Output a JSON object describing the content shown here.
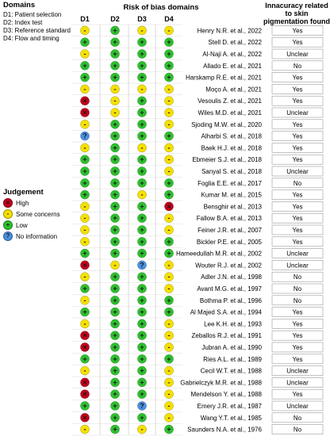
{
  "domains": {
    "title": "Domains",
    "items": [
      "D1: Patient selection",
      "D2: Index test",
      "D3: Reference standard",
      "D4: Flow and timing"
    ]
  },
  "judgement": {
    "title": "Judgement",
    "items": [
      {
        "key": "high",
        "symbol": "×",
        "label": "High"
      },
      {
        "key": "some",
        "symbol": "-",
        "label": "Some concerns"
      },
      {
        "key": "low",
        "symbol": "+",
        "label": "Low"
      },
      {
        "key": "noinfo",
        "symbol": "?",
        "label": "No information"
      }
    ]
  },
  "colors": {
    "high": "#c0001a",
    "some": "#f5e000",
    "low": "#2ec02e",
    "noinfo": "#4a90e2"
  },
  "chart_data": {
    "type": "table",
    "title": "Risk of bias domains",
    "columns": [
      "D1",
      "D2",
      "D3",
      "D4"
    ],
    "extra_column_title": "Innacuracy related to skin pigmentation found",
    "rows": [
      {
        "study": "Henry N.R. et al., 2022",
        "d": [
          "some",
          "low",
          "some",
          "some"
        ],
        "finding": "Yes"
      },
      {
        "study": "Stell D. et al., 2022",
        "d": [
          "low",
          "low",
          "low",
          "low"
        ],
        "finding": "Yes"
      },
      {
        "study": "Al-Naji A. et al., 2022",
        "d": [
          "some",
          "low",
          "low",
          "low"
        ],
        "finding": "Unclear"
      },
      {
        "study": "Allado E. et al., 2021",
        "d": [
          "low",
          "low",
          "low",
          "low"
        ],
        "finding": "No"
      },
      {
        "study": "Harskamp R.E. et al., 2021",
        "d": [
          "low",
          "low",
          "low",
          "low"
        ],
        "finding": "Yes"
      },
      {
        "study": "Moço A. et al., 2021",
        "d": [
          "some",
          "some",
          "some",
          "some"
        ],
        "finding": "Yes"
      },
      {
        "study": "Vesoulis Z. et al., 2021",
        "d": [
          "high",
          "some",
          "low",
          "some"
        ],
        "finding": "Yes"
      },
      {
        "study": "Wiles M.D. et al., 2021",
        "d": [
          "high",
          "some",
          "low",
          "some"
        ],
        "finding": "Unclear"
      },
      {
        "study": "Sjoding M.W. et al., 2020",
        "d": [
          "some",
          "low",
          "low",
          "some"
        ],
        "finding": "Yes"
      },
      {
        "study": "Alharbi S. et al., 2018",
        "d": [
          "noinfo",
          "low",
          "low",
          "low"
        ],
        "finding": "Yes"
      },
      {
        "study": "Baek H.J. et al., 2018",
        "d": [
          "some",
          "low",
          "some",
          "some"
        ],
        "finding": "Yes"
      },
      {
        "study": "Ebmeier S.J. et al., 2018",
        "d": [
          "low",
          "low",
          "low",
          "some"
        ],
        "finding": "Yes"
      },
      {
        "study": "Sanyal S. et al., 2018",
        "d": [
          "low",
          "low",
          "low",
          "some"
        ],
        "finding": "Unclear"
      },
      {
        "study": "Foglia E.E. et al., 2017",
        "d": [
          "low",
          "low",
          "low",
          "low"
        ],
        "finding": "No"
      },
      {
        "study": "Kumar M. et al., 2015",
        "d": [
          "low",
          "low",
          "some",
          "low"
        ],
        "finding": "Yes"
      },
      {
        "study": "Bensghir et al., 2013",
        "d": [
          "some",
          "low",
          "low",
          "high"
        ],
        "finding": "Yes"
      },
      {
        "study": "Fallow B.A. et al., 2013",
        "d": [
          "some",
          "low",
          "low",
          "some"
        ],
        "finding": "Yes"
      },
      {
        "study": "Feiner J.R. et al., 2007",
        "d": [
          "some",
          "low",
          "low",
          "some"
        ],
        "finding": "Yes"
      },
      {
        "study": "Bickler P.E. et al., 2005",
        "d": [
          "some",
          "low",
          "low",
          "low"
        ],
        "finding": "Yes"
      },
      {
        "study": "Hameedullah M.R. et al., 2002",
        "d": [
          "low",
          "low",
          "low",
          "low"
        ],
        "finding": "Unclear"
      },
      {
        "study": "Wouter R.J. et al., 2002",
        "d": [
          "high",
          "some",
          "noinfo",
          "some"
        ],
        "finding": "Unclear"
      },
      {
        "study": "Adler J.N. et al., 1998",
        "d": [
          "some",
          "low",
          "low",
          "some"
        ],
        "finding": "No"
      },
      {
        "study": "Avant M.G. et al., 1997",
        "d": [
          "low",
          "low",
          "low",
          "some"
        ],
        "finding": "No"
      },
      {
        "study": "Bothma P. et al., 1996",
        "d": [
          "some",
          "low",
          "low",
          "low"
        ],
        "finding": "No"
      },
      {
        "study": "Al Majed S.A. et al., 1994",
        "d": [
          "low",
          "low",
          "low",
          "low"
        ],
        "finding": "Yes"
      },
      {
        "study": "Lee K.H. et al., 1993",
        "d": [
          "some",
          "low",
          "low",
          "some"
        ],
        "finding": "Yes"
      },
      {
        "study": "Zeballos R.J. et al., 1991",
        "d": [
          "high",
          "low",
          "low",
          "some"
        ],
        "finding": "Yes"
      },
      {
        "study": "Jubran A. et al., 1990",
        "d": [
          "high",
          "low",
          "low",
          "some"
        ],
        "finding": "Yes"
      },
      {
        "study": "Ries A.L. et al., 1989",
        "d": [
          "low",
          "low",
          "low",
          "low"
        ],
        "finding": "Yes"
      },
      {
        "study": "Cecil W.T. et al., 1988",
        "d": [
          "some",
          "low",
          "low",
          "some"
        ],
        "finding": "Unclear"
      },
      {
        "study": "Gabrielczyk M.R. et al., 1988",
        "d": [
          "high",
          "low",
          "low",
          "some"
        ],
        "finding": "Unclear"
      },
      {
        "study": "Mendelson Y. et al., 1988",
        "d": [
          "high",
          "low",
          "low",
          "some"
        ],
        "finding": "Yes"
      },
      {
        "study": "Emery J.R. et al., 1987",
        "d": [
          "low",
          "low",
          "noinfo",
          "some"
        ],
        "finding": "Unclear"
      },
      {
        "study": "Wang Y.T. et al., 1985",
        "d": [
          "high",
          "low",
          "low",
          "some"
        ],
        "finding": "No"
      },
      {
        "study": "Saunders N.A. et al., 1976",
        "d": [
          "some",
          "low",
          "some",
          "low"
        ],
        "finding": "No"
      }
    ]
  }
}
